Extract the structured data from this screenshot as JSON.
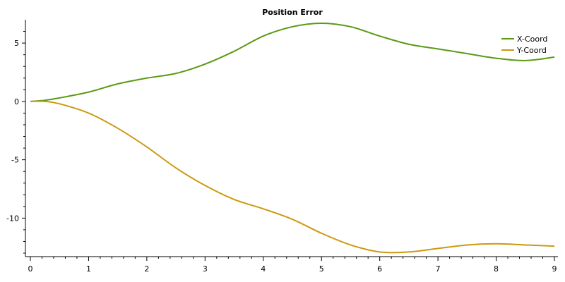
{
  "chart_data": {
    "type": "line",
    "title": "Position Error",
    "xlabel": "",
    "ylabel": "",
    "xlim": [
      0,
      9
    ],
    "ylim": [
      -13.3,
      7
    ],
    "x_ticks": [
      0,
      1,
      2,
      3,
      4,
      5,
      6,
      7,
      8,
      9
    ],
    "x_tick_labels": [
      "0",
      "1",
      "2",
      "3",
      "4",
      "5",
      "6",
      "7",
      "8",
      "9"
    ],
    "y_ticks": [
      5,
      0,
      -5,
      -10
    ],
    "y_tick_labels": [
      "5",
      "0",
      "-5",
      "-10"
    ],
    "grid": false,
    "legend_position": "top-right",
    "series": [
      {
        "name": "X-Coord",
        "color": "#5a9a14",
        "x": [
          0,
          0.25,
          0.5,
          1,
          1.5,
          2,
          2.5,
          3,
          3.5,
          4,
          4.5,
          5,
          5.5,
          6,
          6.5,
          7,
          7.5,
          8,
          8.5,
          9
        ],
        "y": [
          0,
          0.1,
          0.3,
          0.8,
          1.5,
          2.0,
          2.4,
          3.2,
          4.3,
          5.6,
          6.4,
          6.7,
          6.4,
          5.6,
          4.9,
          4.5,
          4.1,
          3.7,
          3.5,
          3.8
        ]
      },
      {
        "name": "Y-Coord",
        "color": "#cc9910",
        "x": [
          0,
          0.25,
          0.5,
          1,
          1.5,
          2,
          2.5,
          3,
          3.5,
          4,
          4.5,
          5,
          5.5,
          6,
          6.5,
          7,
          7.5,
          8,
          8.5,
          9
        ],
        "y": [
          0,
          0,
          -0.2,
          -1.0,
          -2.3,
          -3.9,
          -5.7,
          -7.2,
          -8.4,
          -9.2,
          -10.1,
          -11.3,
          -12.3,
          -12.9,
          -12.9,
          -12.6,
          -12.3,
          -12.2,
          -12.3,
          -12.4
        ]
      }
    ]
  }
}
